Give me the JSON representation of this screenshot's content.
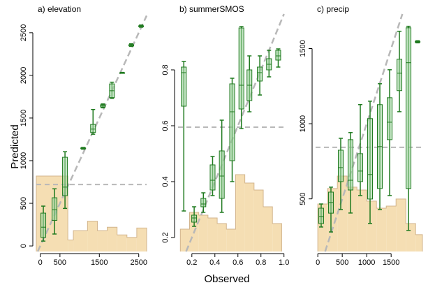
{
  "y_label": "Predicted",
  "x_label": "Observed",
  "chart_data": [
    {
      "type": "box",
      "title": "a) elevation",
      "color": "#1f7a1f",
      "box_fill": "#9fd49f",
      "hist_color": "#f5deb3",
      "hist_edge": "#d2b48c",
      "ref_color": "#b8b8b8",
      "xlim": [
        -100,
        2700
      ],
      "ylim": [
        -65,
        2720
      ],
      "xticks": [
        0,
        500,
        1500,
        2500
      ],
      "yticks": [
        0,
        500,
        1000,
        1500,
        2000,
        2500
      ],
      "boxes": {
        "x": [
          78,
          362,
          628,
          1090,
          1340,
          1590,
          1820,
          2080,
          2310,
          2560
        ],
        "low": [
          57,
          140,
          440,
          1135,
          1310,
          1620,
          1730,
          2025,
          2340,
          2565
        ],
        "q1": [
          100,
          300,
          590,
          1140,
          1330,
          1630,
          1740,
          2028,
          2345,
          2570
        ],
        "median": [
          220,
          425,
          690,
          1145,
          1370,
          1645,
          1820,
          2030,
          2350,
          2575
        ],
        "q3": [
          385,
          565,
          1040,
          1150,
          1425,
          1655,
          1900,
          2032,
          2360,
          2582
        ],
        "high": [
          467,
          670,
          1105,
          1155,
          1600,
          1665,
          1920,
          2035,
          2370,
          2590
        ]
      },
      "mean_line": 720,
      "hist": {
        "bins": [
          -100,
          700,
          840,
          1200,
          1450,
          1700,
          1950,
          2200,
          2450,
          2700
        ],
        "counts": [
          820,
          70,
          180,
          290,
          180,
          220,
          130,
          100,
          210
        ]
      }
    },
    {
      "type": "box",
      "title": "b) summerSMOS",
      "color": "#1f7a1f",
      "box_fill": "#9fd49f",
      "hist_color": "#f5deb3",
      "hist_edge": "#d2b48c",
      "ref_color": "#b8b8b8",
      "xlim": [
        0.08,
        1.02
      ],
      "ylim": [
        0.15,
        1.0
      ],
      "xticks": [
        0.2,
        0.4,
        0.6,
        0.8,
        {
          "value": 1,
          "label": "1.0"
        }
      ],
      "yticks": [
        0.2,
        0.4,
        0.6,
        0.8
      ],
      "boxes": {
        "x": [
          0.13,
          0.22,
          0.3,
          0.38,
          0.46,
          0.55,
          0.63,
          0.7,
          0.79,
          0.87,
          0.95
        ],
        "low": [
          0.295,
          0.24,
          0.29,
          0.35,
          0.29,
          0.4,
          0.59,
          0.65,
          0.71,
          0.775,
          0.81
        ],
        "q1": [
          0.67,
          0.255,
          0.31,
          0.37,
          0.34,
          0.475,
          0.66,
          0.69,
          0.76,
          0.8,
          0.835
        ],
        "median": [
          0.79,
          0.27,
          0.32,
          0.405,
          0.42,
          0.65,
          0.745,
          0.745,
          0.79,
          0.82,
          0.85
        ],
        "q3": [
          0.81,
          0.28,
          0.34,
          0.46,
          0.51,
          0.75,
          0.95,
          0.8,
          0.81,
          0.84,
          0.87
        ],
        "high": [
          0.83,
          0.31,
          0.36,
          0.49,
          0.62,
          0.77,
          0.955,
          0.85,
          0.85,
          0.87,
          0.875
        ]
      },
      "mean_line": 0.595,
      "hist": {
        "bins": [
          0.1,
          0.18,
          0.26,
          0.34,
          0.42,
          0.5,
          0.58,
          0.66,
          0.74,
          0.82,
          0.9,
          0.98
        ],
        "counts": [
          0.23,
          0.29,
          0.28,
          0.27,
          0.25,
          0.23,
          0.425,
          0.395,
          0.37,
          0.31,
          0.25
        ]
      }
    },
    {
      "type": "box",
      "title": "c) precip",
      "color": "#1f7a1f",
      "box_fill": "#9fd49f",
      "hist_color": "#f5deb3",
      "hist_edge": "#d2b48c",
      "ref_color": "#b8b8b8",
      "xlim": [
        -45,
        2140
      ],
      "ylim": [
        150,
        1730
      ],
      "xticks": [
        0,
        500,
        1000,
        1500
      ],
      "yticks": [
        500,
        1000,
        1500
      ],
      "boxes": {
        "x": [
          69,
          269,
          469,
          669,
          869,
          1069,
          1269,
          1469,
          1669,
          1855,
          2041
        ],
        "low": [
          313,
          280,
          429,
          406,
          522,
          336,
          429,
          522,
          1080,
          290,
          1538
        ],
        "q1": [
          336,
          405,
          615,
          559,
          615,
          499,
          569,
          894,
          1220,
          569,
          1542
        ],
        "median": [
          383,
          476,
          708,
          624,
          685,
          662,
          848,
          1010,
          1336,
          1406,
          1545
        ],
        "q3": [
          438,
          545,
          824,
          894,
          801,
          1034,
          1127,
          1173,
          1429,
          1638,
          1548
        ],
        "high": [
          466,
          578,
          903,
          941,
          1127,
          1150,
          1266,
          1359,
          1615,
          1648,
          1552
        ]
      },
      "mean_line": 843,
      "hist": {
        "bins": [
          0,
          200,
          400,
          600,
          800,
          1000,
          1200,
          1400,
          1600,
          1800,
          2000,
          2140
        ],
        "counts": [
          466,
          569,
          652,
          578,
          559,
          485,
          438,
          452,
          499,
          336,
          262
        ]
      }
    }
  ]
}
